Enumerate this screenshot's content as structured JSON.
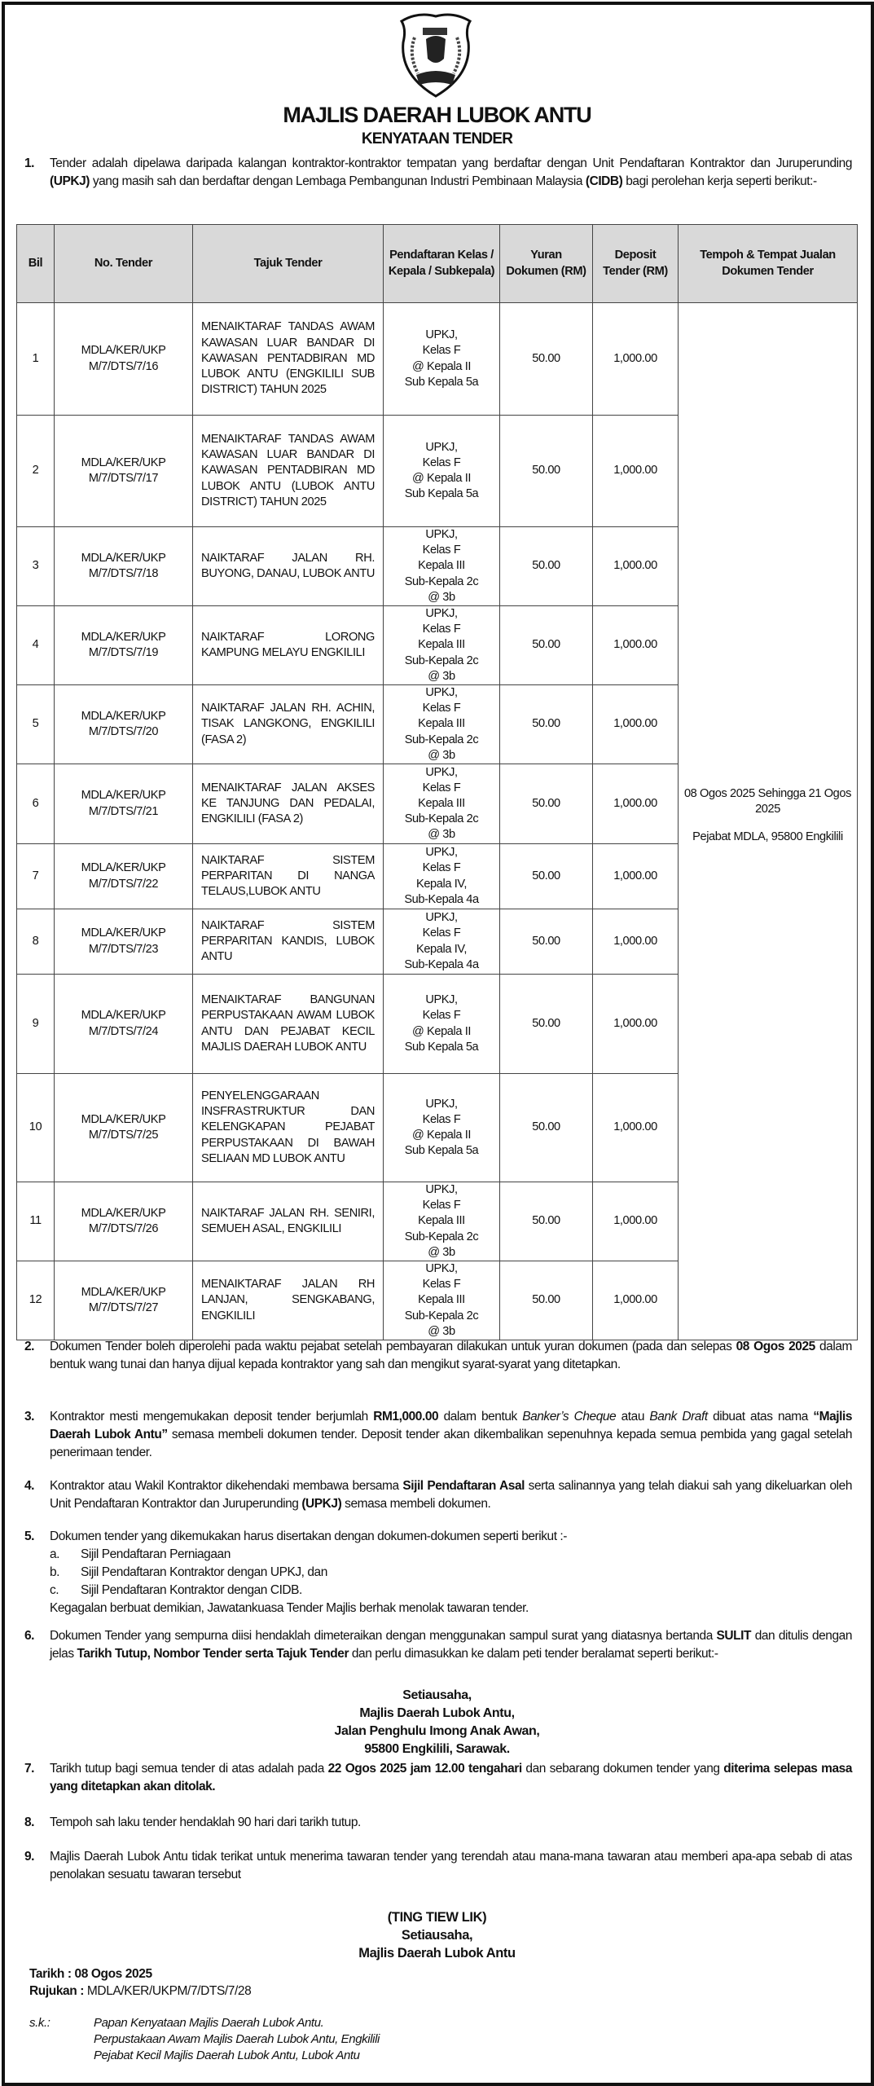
{
  "header": {
    "logo": "Majlis Daerah Lubok Antu crest",
    "title": "MAJLIS DAERAH LUBOK ANTU",
    "subtitle": "KENYATAAN TENDER"
  },
  "para1": {
    "num": "1.",
    "segments": [
      {
        "t": "Tender adalah dipelawa daripada kalangan kontraktor-kontraktor tempatan yang berdaftar dengan Unit Pendaftaran Kontraktor dan Juruperunding "
      },
      {
        "t": "(UPKJ)",
        "b": true
      },
      {
        "t": " yang masih sah dan berdaftar dengan Lembaga Pembangunan Industri Pembinaan Malaysia "
      },
      {
        "t": "(CIDB)",
        "b": true
      },
      {
        "t": " bagi perolehan kerja seperti berikut:-"
      }
    ]
  },
  "table": {
    "headers": [
      "Bil",
      "No. Tender",
      "Tajuk Tender",
      "Pendaftaran Kelas / Kepala / Subkepala)",
      "Yuran Dokumen (RM)",
      "Deposit Tender (RM)",
      "Tempoh & Tempat Jualan Dokumen Tender"
    ],
    "tempoh": {
      "period": "08 Ogos 2025 Sehingga 21 Ogos 2025",
      "place": "Pejabat MDLA, 95800 Engkilili"
    },
    "rows": [
      {
        "bil": "1",
        "no": "MDLA/KER/UKP M/7/DTS/7/16",
        "tajuk": "MENAIKTARAF TANDAS AWAM KAWASAN LUAR BANDAR DI KAWASAN PENTADBIRAN MD LUBOK ANTU (ENGKILILI SUB DISTRICT) TAHUN 2025",
        "kelas": [
          "UPKJ,",
          "Kelas F",
          "@ Kepala II",
          "Sub Kepala 5a"
        ],
        "yuran": "50.00",
        "deposit": "1,000.00"
      },
      {
        "bil": "2",
        "no": "MDLA/KER/UKP M/7/DTS/7/17",
        "tajuk": "MENAIKTARAF TANDAS AWAM KAWASAN LUAR BANDAR DI KAWASAN PENTADBIRAN MD LUBOK ANTU (LUBOK ANTU DISTRICT) TAHUN 2025",
        "kelas": [
          "UPKJ,",
          "Kelas F",
          "@ Kepala II",
          "Sub Kepala 5a"
        ],
        "yuran": "50.00",
        "deposit": "1,000.00"
      },
      {
        "bil": "3",
        "no": "MDLA/KER/UKP M/7/DTS/7/18",
        "tajuk": "NAIKTARAF JALAN RH. BUYONG, DANAU, LUBOK ANTU",
        "kelas": [
          "UPKJ,",
          "Kelas F",
          "Kepala III",
          "Sub-Kepala 2c",
          "@ 3b"
        ],
        "yuran": "50.00",
        "deposit": "1,000.00"
      },
      {
        "bil": "4",
        "no": "MDLA/KER/UKP M/7/DTS/7/19",
        "tajuk": "NAIKTARAF LORONG KAMPUNG MELAYU ENGKILILI",
        "kelas": [
          "UPKJ,",
          "Kelas F",
          "Kepala III",
          "Sub-Kepala 2c",
          "@ 3b"
        ],
        "yuran": "50.00",
        "deposit": "1,000.00"
      },
      {
        "bil": "5",
        "no": "MDLA/KER/UKP M/7/DTS/7/20",
        "tajuk": "NAIKTARAF JALAN RH. ACHIN, TISAK LANGKONG, ENGKILILI (FASA 2)",
        "kelas": [
          "UPKJ,",
          "Kelas F",
          "Kepala III",
          "Sub-Kepala 2c",
          "@ 3b"
        ],
        "yuran": "50.00",
        "deposit": "1,000.00"
      },
      {
        "bil": "6",
        "no": "MDLA/KER/UKP M/7/DTS/7/21",
        "tajuk": "MENAIKTARAF JALAN AKSES KE TANJUNG DAN PEDALAI, ENGKILILI (FASA 2)",
        "kelas": [
          "UPKJ,",
          "Kelas F",
          "Kepala III",
          "Sub-Kepala 2c",
          "@ 3b"
        ],
        "yuran": "50.00",
        "deposit": "1,000.00"
      },
      {
        "bil": "7",
        "no": "MDLA/KER/UKP M/7/DTS/7/22",
        "tajuk": "NAIKTARAF SISTEM PERPARITAN DI NANGA TELAUS,LUBOK ANTU",
        "kelas": [
          "UPKJ,",
          "Kelas F",
          "Kepala IV,",
          "Sub-Kepala 4a"
        ],
        "yuran": "50.00",
        "deposit": "1,000.00"
      },
      {
        "bil": "8",
        "no": "MDLA/KER/UKP M/7/DTS/7/23",
        "tajuk": "NAIKTARAF SISTEM PERPARITAN KANDIS, LUBOK ANTU",
        "kelas": [
          "UPKJ,",
          "Kelas F",
          "Kepala IV,",
          "Sub-Kepala 4a"
        ],
        "yuran": "50.00",
        "deposit": "1,000.00"
      },
      {
        "bil": "9",
        "no": "MDLA/KER/UKP M/7/DTS/7/24",
        "tajuk": "MENAIKTARAF BANGUNAN PERPUSTAKAAN AWAM LUBOK ANTU DAN PEJABAT KECIL MAJLIS DAERAH LUBOK ANTU",
        "kelas": [
          "UPKJ,",
          "Kelas F",
          "@ Kepala II",
          "Sub Kepala 5a"
        ],
        "yuran": "50.00",
        "deposit": "1,000.00"
      },
      {
        "bil": "10",
        "no": "MDLA/KER/UKP M/7/DTS/7/25",
        "tajuk": "PENYELENGGARAAN INSFRASTRUKTUR DAN KELENGKAPAN PEJABAT PERPUSTAKAAN DI BAWAH SELIAAN MD LUBOK ANTU",
        "kelas": [
          "UPKJ,",
          "Kelas F",
          "@ Kepala II",
          "Sub Kepala 5a"
        ],
        "yuran": "50.00",
        "deposit": "1,000.00"
      },
      {
        "bil": "11",
        "no": "MDLA/KER/UKP M/7/DTS/7/26",
        "tajuk": "NAIKTARAF JALAN RH. SENIRI, SEMUEH ASAL, ENGKILILI",
        "kelas": [
          "UPKJ,",
          "Kelas F",
          "Kepala III",
          "Sub-Kepala 2c",
          "@ 3b"
        ],
        "yuran": "50.00",
        "deposit": "1,000.00"
      },
      {
        "bil": "12",
        "no": "MDLA/KER/UKP M/7/DTS/7/27",
        "tajuk": "MENAIKTARAF JALAN RH LANJAN, SENGKABANG, ENGKILILI",
        "kelas": [
          "UPKJ,",
          "Kelas F",
          "Kepala III",
          "Sub-Kepala 2c",
          "@ 3b"
        ],
        "yuran": "50.00",
        "deposit": "1,000.00"
      }
    ]
  },
  "para2": {
    "num": "2.",
    "segments": [
      {
        "t": "Dokumen Tender boleh diperolehi pada waktu pejabat setelah pembayaran dilakukan untuk yuran dokumen (pada dan selepas "
      },
      {
        "t": "08 Ogos 2025",
        "b": true
      },
      {
        "t": "  dalam bentuk wang tunai dan hanya dijual kepada kontraktor yang sah dan mengikut syarat-syarat yang ditetapkan."
      }
    ]
  },
  "para3": {
    "num": "3.",
    "segments": [
      {
        "t": "Kontraktor mesti mengemukakan deposit tender berjumlah "
      },
      {
        "t": "RM1,000.00",
        "b": true
      },
      {
        "t": " dalam bentuk "
      },
      {
        "t": "Banker’s Cheque",
        "i": true
      },
      {
        "t": " atau "
      },
      {
        "t": "Bank Draft",
        "i": true
      },
      {
        "t": " dibuat atas nama "
      },
      {
        "t": "“Majlis Daerah Lubok Antu”",
        "b": true
      },
      {
        "t": " semasa membeli dokumen tender. Deposit tender akan dikembalikan sepenuhnya kepada semua pembida yang gagal setelah penerimaan tender."
      }
    ]
  },
  "para4": {
    "num": "4.",
    "segments": [
      {
        "t": "Kontraktor atau Wakil Kontraktor dikehendaki membawa bersama "
      },
      {
        "t": "Sijil Pendaftaran Asal",
        "b": true
      },
      {
        "t": " serta salinannya yang telah diakui sah yang dikeluarkan oleh Unit Pendaftaran Kontraktor dan Juruperunding "
      },
      {
        "t": "(UPKJ)",
        "b": true
      },
      {
        "t": " semasa membeli dokumen."
      }
    ]
  },
  "para5": {
    "num": "5.",
    "segments": [
      {
        "t": "Dokumen tender yang dikemukakan harus disertakan dengan dokumen-dokumen seperti berikut :-"
      }
    ],
    "items": [
      {
        "label": "a.",
        "text": "Sijil Pendaftaran Perniagaan"
      },
      {
        "label": "b.",
        "text": "Sijil Pendaftaran Kontraktor dengan UPKJ, dan"
      },
      {
        "label": "c.",
        "text": "Sijil Pendaftaran Kontraktor dengan CIDB."
      }
    ],
    "footer": "Kegagalan berbuat demikian, Jawatankuasa Tender Majlis berhak menolak tawaran tender."
  },
  "para6": {
    "num": "6.",
    "segments": [
      {
        "t": "Dokumen Tender yang sempurna diisi hendaklah dimeteraikan dengan menggunakan sampul surat yang diatasnya bertanda "
      },
      {
        "t": "SULIT",
        "b": true
      },
      {
        "t": " dan ditulis dengan jelas "
      },
      {
        "t": "Tarikh Tutup, Nombor Tender serta Tajuk Tender",
        "b": true
      },
      {
        "t": " dan perlu dimasukkan ke dalam peti tender beralamat seperti berikut:-"
      }
    ]
  },
  "address": [
    "Setiausaha,",
    "Majlis Daerah Lubok Antu,",
    "Jalan Penghulu Imong Anak Awan,",
    "95800 Engkilili, Sarawak."
  ],
  "para7": {
    "num": "7.",
    "segments": [
      {
        "t": "Tarikh tutup bagi semua tender di atas adalah pada "
      },
      {
        "t": "22 Ogos 2025 jam 12.00 tengahari",
        "b": true
      },
      {
        "t": "  dan sebarang dokumen tender yang "
      },
      {
        "t": "diterima selepas masa yang ditetapkan akan ditolak.",
        "b": true
      }
    ]
  },
  "para8": {
    "num": "8.",
    "segments": [
      {
        "t": "Tempoh sah laku tender hendaklah 90 hari dari tarikh tutup."
      }
    ]
  },
  "para9": {
    "num": "9.",
    "segments": [
      {
        "t": "Majlis Daerah Lubok Antu tidak terikat untuk menerima tawaran tender yang terendah atau mana-mana tawaran atau memberi apa-apa sebab di atas penolakan sesuatu tawaran tersebut"
      }
    ]
  },
  "signature": [
    "(TING TIEW LIK)",
    "Setiausaha,",
    "Majlis Daerah Lubok Antu"
  ],
  "meta": {
    "date_label": "Tarikh : 08 Ogos 2025",
    "ref_label": "Rujukan :",
    "ref_value": " MDLA/KER/UKPM/7/DTS/7/28"
  },
  "cc": {
    "label": "s.k.:",
    "list": [
      "Papan Kenyataan Majlis Daerah Lubok Antu.",
      "Perpustakaan Awam Majlis Daerah Lubok Antu, Engkilili",
      "Pejabat Kecil Majlis Daerah Lubok Antu, Lubok Antu"
    ]
  }
}
